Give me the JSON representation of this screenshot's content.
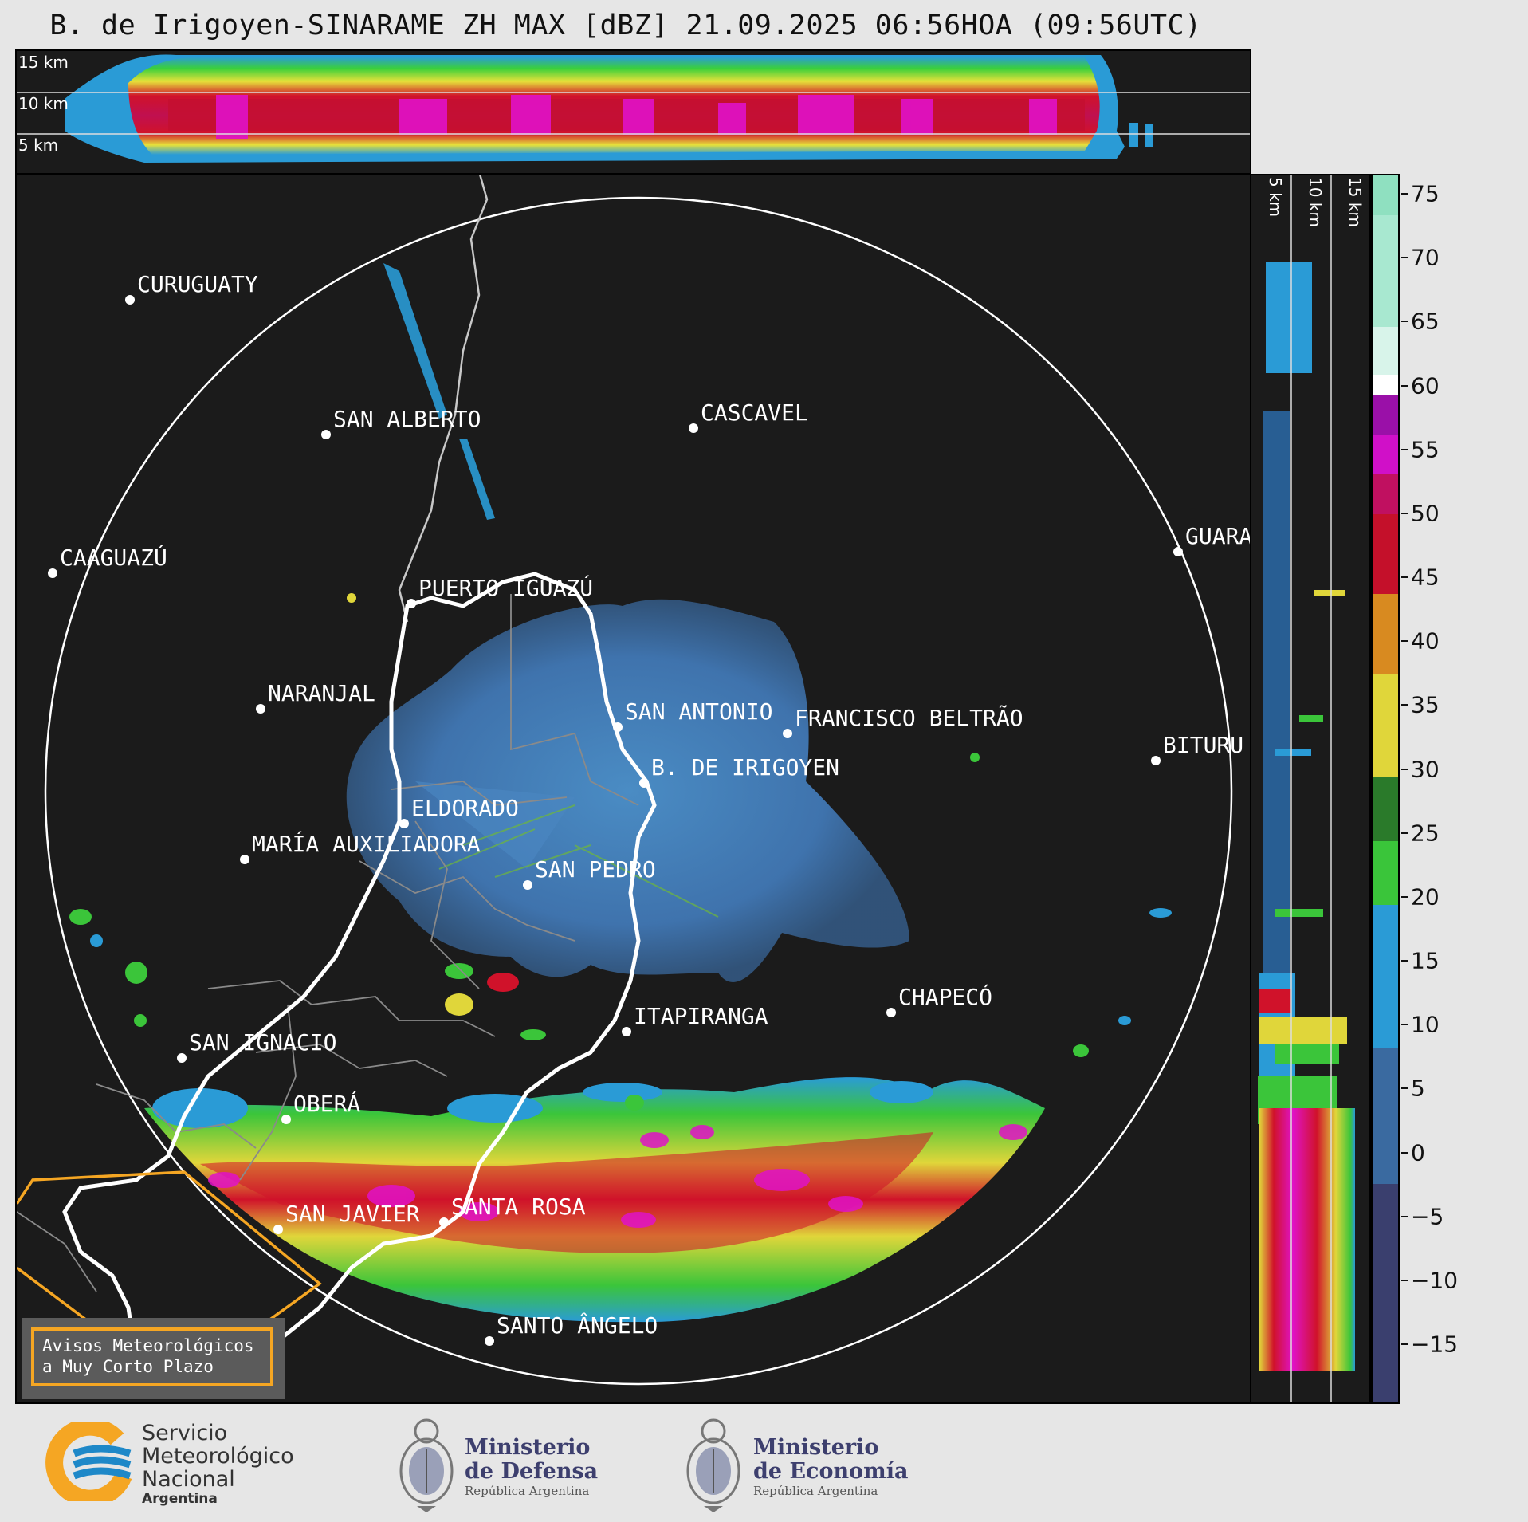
{
  "title": "B. de Irigoyen-SINARAME ZH MAX [dBZ] 21.09.2025 06:56HOA (09:56UTC)",
  "top_panel": {
    "altitude_labels": [
      "15 km",
      "10 km",
      "5 km"
    ]
  },
  "side_panel": {
    "altitude_labels": [
      "5 km",
      "10 km",
      "15 km"
    ]
  },
  "colorbar": {
    "unit": "dBZ",
    "ticks": [
      "75",
      "70",
      "65",
      "60",
      "55",
      "50",
      "45",
      "40",
      "35",
      "30",
      "25",
      "20",
      "15",
      "10",
      "5",
      "0",
      "−5",
      "−10",
      "−15"
    ],
    "range": [
      -20,
      77
    ]
  },
  "places": [
    {
      "name": "CURUGUATY"
    },
    {
      "name": "SAN ALBERTO"
    },
    {
      "name": "CASCAVEL"
    },
    {
      "name": "CAAGUAZÚ"
    },
    {
      "name": "GUARA"
    },
    {
      "name": "PUERTO IGUAZÚ"
    },
    {
      "name": "NARANJAL"
    },
    {
      "name": "SAN ANTONIO"
    },
    {
      "name": "FRANCISCO BELTRÃO"
    },
    {
      "name": "BITURU"
    },
    {
      "name": "B. DE IRIGOYEN"
    },
    {
      "name": "ELDORADO"
    },
    {
      "name": "MARÍA AUXILIADORA"
    },
    {
      "name": "SAN PEDRO"
    },
    {
      "name": "CHAPECÓ"
    },
    {
      "name": "ITAPIRANGA"
    },
    {
      "name": "SAN IGNACIO"
    },
    {
      "name": "OBERÁ"
    },
    {
      "name": "SAN JAVIER"
    },
    {
      "name": "SANTA ROSA"
    },
    {
      "name": "SANTO ÂNGELO"
    }
  ],
  "avisos": {
    "line1": "Avisos Meteorológicos",
    "line2": "a Muy Corto Plazo"
  },
  "footer": {
    "smn": {
      "line1": "Servicio",
      "line2": "Meteorológico",
      "line3": "Nacional",
      "line4": "Argentina"
    },
    "defensa": {
      "line1": "Ministerio",
      "line2": "de Defensa",
      "sub": "República Argentina"
    },
    "economia": {
      "line1": "Ministerio",
      "line2": "de Economía",
      "sub": "República Argentina"
    }
  },
  "colors": {
    "background": "#1b1b1b",
    "warning_box": "#f5a623",
    "smn_orange": "#f5a623",
    "smn_blue": "#1e88c8"
  }
}
